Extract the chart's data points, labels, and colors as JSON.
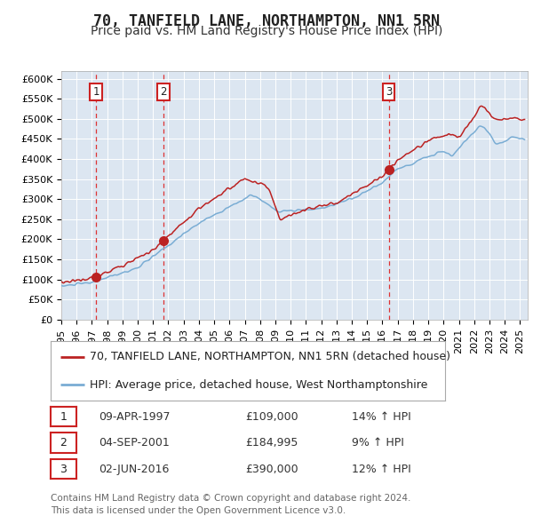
{
  "title": "70, TANFIELD LANE, NORTHAMPTON, NN1 5RN",
  "subtitle": "Price paid vs. HM Land Registry's House Price Index (HPI)",
  "ylim": [
    0,
    620000
  ],
  "yticks": [
    0,
    50000,
    100000,
    150000,
    200000,
    250000,
    300000,
    350000,
    400000,
    450000,
    500000,
    550000,
    600000
  ],
  "xlim_start": 1995.0,
  "xlim_end": 2025.5,
  "background_color": "#ffffff",
  "plot_bg_color": "#dce6f1",
  "grid_color": "#ffffff",
  "sale_color": "#bb2222",
  "hpi_color": "#7aadd4",
  "dashed_line_color": "#dd3333",
  "annotation_box_color": "#ffffff",
  "annotation_border_color": "#cc2222",
  "sales": [
    {
      "date_year": 1997.27,
      "price": 109000,
      "label": "1"
    },
    {
      "date_year": 2001.67,
      "price": 184995,
      "label": "2"
    },
    {
      "date_year": 2016.42,
      "price": 390000,
      "label": "3"
    }
  ],
  "legend_line1": "70, TANFIELD LANE, NORTHAMPTON, NN1 5RN (detached house)",
  "legend_line2": "HPI: Average price, detached house, West Northamptonshire",
  "table_rows": [
    {
      "num": "1",
      "date": "09-APR-1997",
      "price": "£109,000",
      "change": "14% ↑ HPI"
    },
    {
      "num": "2",
      "date": "04-SEP-2001",
      "price": "£184,995",
      "change": "9% ↑ HPI"
    },
    {
      "num": "3",
      "date": "02-JUN-2016",
      "price": "£390,000",
      "change": "12% ↑ HPI"
    }
  ],
  "footer": "Contains HM Land Registry data © Crown copyright and database right 2024.\nThis data is licensed under the Open Government Licence v3.0.",
  "title_fontsize": 12,
  "subtitle_fontsize": 10,
  "tick_fontsize": 8,
  "legend_fontsize": 9,
  "table_fontsize": 9,
  "footer_fontsize": 7.5
}
